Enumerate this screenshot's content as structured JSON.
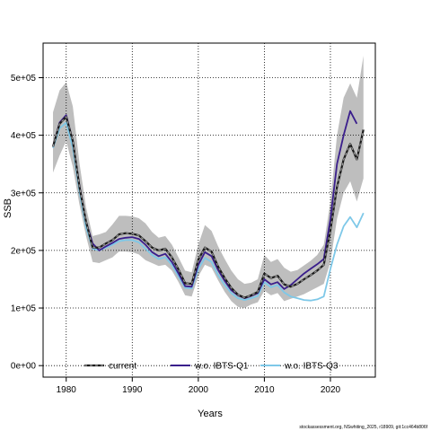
{
  "chart_data": {
    "type": "line",
    "xlabel": "Years",
    "ylabel": "SSB",
    "xlim": [
      1976.5,
      2026.8
    ],
    "ylim": [
      -20000,
      560000
    ],
    "x_ticks": [
      1980,
      1990,
      2000,
      2010,
      2020
    ],
    "x_tick_labels": [
      "1980",
      "1990",
      "2000",
      "2010",
      "2020"
    ],
    "y_ticks": [
      0,
      100000,
      200000,
      300000,
      400000,
      500000
    ],
    "y_tick_labels": [
      "0e+00",
      "1e+05",
      "2e+05",
      "3e+05",
      "4e+05",
      "5e+05"
    ],
    "grid": true,
    "legend_position": "bottom",
    "band_color": "#bebebe",
    "band": {
      "x": [
        1978,
        1979,
        1980,
        1981,
        1982,
        1983,
        1984,
        1985,
        1986,
        1987,
        1988,
        1989,
        1990,
        1991,
        1992,
        1993,
        1994,
        1995,
        1996,
        1997,
        1998,
        1999,
        2000,
        2001,
        2002,
        2003,
        2004,
        2005,
        2006,
        2007,
        2008,
        2009,
        2010,
        2011,
        2012,
        2013,
        2014,
        2015,
        2016,
        2017,
        2018,
        2019,
        2020,
        2021,
        2022,
        2023,
        2024,
        2025
      ],
      "lower": [
        335000,
        365000,
        390000,
        345000,
        280000,
        225000,
        180000,
        178000,
        183000,
        188000,
        198000,
        198000,
        197000,
        193000,
        183000,
        178000,
        173000,
        175000,
        165000,
        145000,
        122000,
        120000,
        155000,
        175000,
        170000,
        148000,
        128000,
        112000,
        102000,
        100000,
        106000,
        110000,
        130000,
        122000,
        126000,
        112000,
        116000,
        120000,
        124000,
        130000,
        136000,
        142000,
        180000,
        255000,
        300000,
        320000,
        285000,
        325000
      ],
      "upper": [
        440000,
        478000,
        492000,
        450000,
        352000,
        275000,
        225000,
        228000,
        232000,
        245000,
        260000,
        260000,
        259000,
        256000,
        247000,
        232000,
        222000,
        225000,
        210000,
        188000,
        165000,
        162000,
        210000,
        244000,
        234000,
        207000,
        185000,
        165000,
        150000,
        142000,
        144000,
        150000,
        192000,
        180000,
        185000,
        170000,
        163000,
        166000,
        174000,
        182000,
        192000,
        210000,
        285000,
        400000,
        465000,
        490000,
        465000,
        538000
      ]
    },
    "series": [
      {
        "name": "current",
        "color": "#1a1a1a",
        "style": "dashed",
        "x": [
          1978,
          1979,
          1980,
          1981,
          1982,
          1983,
          1984,
          1985,
          1986,
          1987,
          1988,
          1989,
          1990,
          1991,
          1992,
          1993,
          1994,
          1995,
          1996,
          1997,
          1998,
          1999,
          2000,
          2001,
          2002,
          2003,
          2004,
          2005,
          2006,
          2007,
          2008,
          2009,
          2010,
          2011,
          2012,
          2013,
          2014,
          2015,
          2016,
          2017,
          2018,
          2019,
          2020,
          2021,
          2022,
          2023,
          2024,
          2025
        ],
        "values": [
          380000,
          420000,
          432000,
          390000,
          310000,
          250000,
          205000,
          205000,
          212000,
          218000,
          228000,
          230000,
          229000,
          226000,
          216000,
          205000,
          200000,
          203000,
          188000,
          167000,
          143000,
          142000,
          184000,
          205000,
          198000,
          172000,
          152000,
          135000,
          123000,
          118000,
          122000,
          128000,
          160000,
          152000,
          156000,
          141000,
          137000,
          142000,
          150000,
          157000,
          165000,
          175000,
          235000,
          310000,
          358000,
          385000,
          358000,
          410000
        ]
      },
      {
        "name": "w.o. IBTS-Q1",
        "color": "#3a1e8c",
        "style": "solid",
        "x": [
          1978,
          1979,
          1980,
          1981,
          1982,
          1983,
          1984,
          1985,
          1986,
          1987,
          1988,
          1989,
          1990,
          1991,
          1992,
          1993,
          1994,
          1995,
          1996,
          1997,
          1998,
          1999,
          2000,
          2001,
          2002,
          2003,
          2004,
          2005,
          2006,
          2007,
          2008,
          2009,
          2010,
          2011,
          2012,
          2013,
          2014,
          2015,
          2016,
          2017,
          2018,
          2019,
          2020,
          2021,
          2022,
          2023,
          2024,
          2025
        ],
        "values": [
          380000,
          422000,
          435000,
          390000,
          312000,
          250000,
          212000,
          200000,
          207000,
          213000,
          220000,
          222000,
          223000,
          220000,
          210000,
          197000,
          190000,
          194000,
          180000,
          160000,
          138000,
          137000,
          175000,
          197000,
          190000,
          166000,
          147000,
          131000,
          122000,
          117000,
          121000,
          126000,
          150000,
          141000,
          145000,
          133000,
          140000,
          150000,
          160000,
          168000,
          176000,
          185000,
          255000,
          350000,
          400000,
          442000,
          420000,
          null
        ]
      },
      {
        "name": "w.o. IBTS-Q3",
        "color": "#7ec8e8",
        "style": "solid",
        "x": [
          1978,
          1979,
          1980,
          1981,
          1982,
          1983,
          1984,
          1985,
          1986,
          1987,
          1988,
          1989,
          1990,
          1991,
          1992,
          1993,
          1994,
          1995,
          1996,
          1997,
          1998,
          1999,
          2000,
          2001,
          2002,
          2003,
          2004,
          2005,
          2006,
          2007,
          2008,
          2009,
          2010,
          2011,
          2012,
          2013,
          2014,
          2015,
          2016,
          2017,
          2018,
          2019,
          2020,
          2021,
          2022,
          2023,
          2024,
          2025
        ],
        "values": [
          378000,
          412000,
          422000,
          378000,
          302000,
          240000,
          203000,
          200000,
          205000,
          210000,
          216000,
          218000,
          218000,
          214000,
          203000,
          192000,
          185000,
          188000,
          175000,
          155000,
          135000,
          134000,
          168000,
          187000,
          180000,
          157000,
          140000,
          126000,
          117000,
          114000,
          117000,
          121000,
          145000,
          136000,
          140000,
          127000,
          120000,
          117000,
          114000,
          113000,
          115000,
          120000,
          168000,
          210000,
          242000,
          258000,
          240000,
          265000
        ]
      }
    ],
    "footnote": "stockassessment.org, NSwhiting_2025, r18909, git:1cc464b806f"
  }
}
